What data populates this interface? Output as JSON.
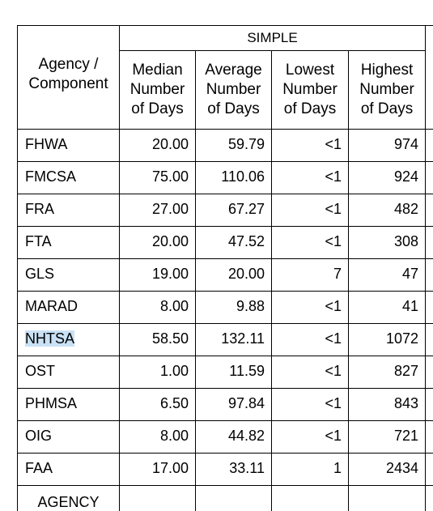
{
  "header": {
    "agency_line1": "Agency /",
    "agency_line2": "Component",
    "group_title": "SIMPLE",
    "columns": [
      [
        "Median",
        "Number",
        "of Days"
      ],
      [
        "Average",
        "Number",
        "of Days"
      ],
      [
        "Lowest",
        "Number",
        "of Days"
      ],
      [
        "Highest",
        "Number",
        "of Days"
      ]
    ]
  },
  "rows": [
    {
      "agency": "FHWA",
      "median": "20.00",
      "average": "59.79",
      "lowest": "<1",
      "highest": "974"
    },
    {
      "agency": "FMCSA",
      "median": "75.00",
      "average": "110.06",
      "lowest": "<1",
      "highest": "924"
    },
    {
      "agency": "FRA",
      "median": "27.00",
      "average": "67.27",
      "lowest": "<1",
      "highest": "482"
    },
    {
      "agency": "FTA",
      "median": "20.00",
      "average": "47.52",
      "lowest": "<1",
      "highest": "308"
    },
    {
      "agency": "GLS",
      "median": "19.00",
      "average": "20.00",
      "lowest": "7",
      "highest": "47"
    },
    {
      "agency": "MARAD",
      "median": "8.00",
      "average": "9.88",
      "lowest": "<1",
      "highest": "41"
    },
    {
      "agency": "NHTSA",
      "median": "58.50",
      "average": "132.11",
      "lowest": "<1",
      "highest": "1072"
    },
    {
      "agency": "OST",
      "median": "1.00",
      "average": "11.59",
      "lowest": "<1",
      "highest": "827"
    },
    {
      "agency": "PHMSA",
      "median": "6.50",
      "average": "97.84",
      "lowest": "<1",
      "highest": "843"
    },
    {
      "agency": "OIG",
      "median": "8.00",
      "average": "44.82",
      "lowest": "<1",
      "highest": "721"
    },
    {
      "agency": "FAA",
      "median": "17.00",
      "average": "33.11",
      "lowest": "1",
      "highest": "2434"
    }
  ],
  "partial_row": {
    "agency": "AGENCY"
  },
  "highlight_color": "#c9e1f5"
}
